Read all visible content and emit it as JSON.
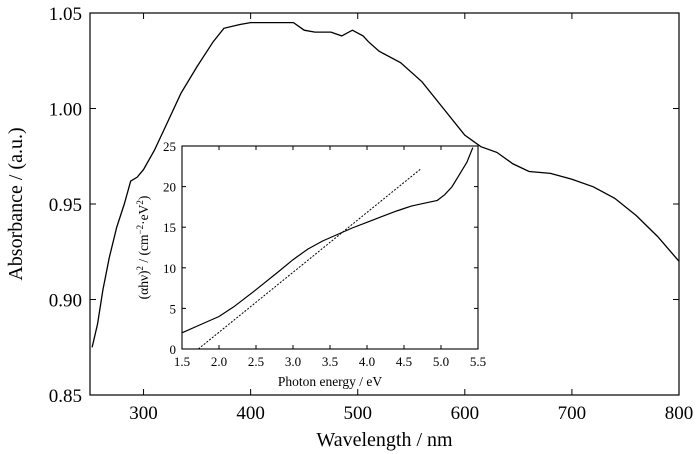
{
  "chart_data": [
    {
      "type": "line",
      "xlabel": "Wavelength / nm",
      "ylabel": "Absorbance / (a.u.)",
      "xlim": [
        250,
        800
      ],
      "ylim": [
        0.85,
        1.05
      ],
      "x_ticks": [
        300,
        400,
        500,
        600,
        700,
        800
      ],
      "x_tick_labels": [
        "300",
        "400",
        "500",
        "600",
        "700",
        "800"
      ],
      "y_ticks": [
        0.85,
        0.9,
        0.95,
        1.0,
        1.05
      ],
      "y_tick_labels": [
        "0.85",
        "0.90",
        "0.95",
        "1.00",
        "1.05"
      ],
      "grid": false,
      "series": [
        {
          "x": [
            252,
            257,
            262,
            268,
            275,
            282,
            288,
            294,
            300,
            310,
            320,
            335,
            350,
            365,
            375,
            390,
            400,
            420,
            440,
            450,
            460,
            475,
            485,
            495,
            505,
            510,
            520,
            540,
            560,
            580,
            600,
            615,
            630,
            645,
            660,
            680,
            700,
            720,
            740,
            760,
            780,
            800
          ],
          "y": [
            0.875,
            0.887,
            0.905,
            0.922,
            0.938,
            0.95,
            0.962,
            0.964,
            0.968,
            0.978,
            0.99,
            1.008,
            1.022,
            1.035,
            1.042,
            1.044,
            1.045,
            1.045,
            1.045,
            1.041,
            1.04,
            1.04,
            1.038,
            1.041,
            1.038,
            1.035,
            1.03,
            1.024,
            1.014,
            1.0,
            0.986,
            0.98,
            0.977,
            0.971,
            0.967,
            0.966,
            0.963,
            0.959,
            0.953,
            0.944,
            0.933,
            0.92
          ]
        }
      ]
    },
    {
      "type": "line",
      "xlabel": "Photon energy / eV",
      "ylabel": "(αhν)² / (cm⁻²·eV²)",
      "ylabel_parts": {
        "p1": "(αhν)",
        "s1": "2",
        "p2": " / (cm",
        "s2": "−2",
        "p3": "·eV",
        "s3": "2",
        "p4": ")"
      },
      "xlim": [
        1.5,
        5.5
      ],
      "ylim": [
        0,
        25
      ],
      "x_ticks": [
        1.5,
        2.0,
        2.5,
        3.0,
        3.5,
        4.0,
        4.5,
        5.0,
        5.5
      ],
      "x_tick_labels": [
        "1.5",
        "2.0",
        "2.5",
        "3.0",
        "3.5",
        "4.0",
        "4.5",
        "5.0",
        "5.5"
      ],
      "y_ticks": [
        0,
        5,
        10,
        15,
        20,
        25
      ],
      "y_tick_labels": [
        "0",
        "5",
        "10",
        "15",
        "20",
        "25"
      ],
      "grid": false,
      "series": [
        {
          "style": "solid",
          "x": [
            1.5,
            1.8,
            2.0,
            2.2,
            2.5,
            2.8,
            3.0,
            3.2,
            3.4,
            3.6,
            3.8,
            4.0,
            4.2,
            4.4,
            4.5,
            4.6,
            4.8,
            4.95,
            5.05,
            5.15,
            5.25,
            5.35,
            5.43
          ],
          "y": [
            2.0,
            3.2,
            4.0,
            5.2,
            7.3,
            9.5,
            11.0,
            12.3,
            13.3,
            14.1,
            14.9,
            15.6,
            16.3,
            17.0,
            17.3,
            17.6,
            18.0,
            18.3,
            19.0,
            20.0,
            21.5,
            23.0,
            24.8
          ]
        },
        {
          "style": "dashed",
          "x": [
            1.72,
            4.73
          ],
          "y": [
            0.0,
            22.2
          ]
        }
      ]
    }
  ]
}
